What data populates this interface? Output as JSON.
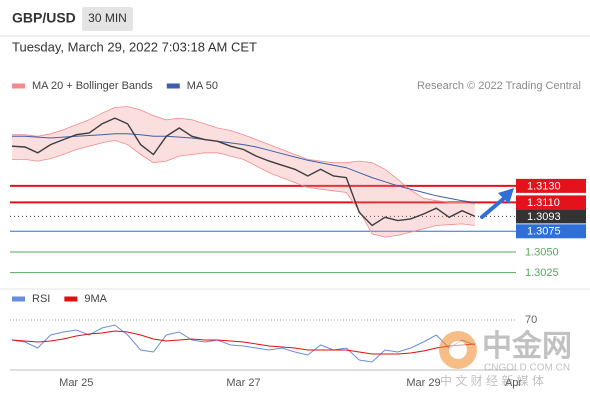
{
  "header": {
    "symbol": "GBP/USD",
    "timeframe": "30 MIN",
    "timestamp": "Tuesday, March 29, 2022 7:03:18 AM CET",
    "credit": "Research © 2022 Trading Central"
  },
  "chart_data": [
    {
      "type": "line",
      "color": "#3d3d3d",
      "values": [
        1.3178,
        1.3177,
        1.317,
        1.318,
        1.3186,
        1.3192,
        1.3194,
        1.3205,
        1.3212,
        1.3205,
        1.318,
        1.3168,
        1.319,
        1.32,
        1.319,
        1.3186,
        1.3184,
        1.3178,
        1.3174,
        1.3166,
        1.316,
        1.3155,
        1.315,
        1.3142,
        1.315,
        1.3142,
        1.314,
        1.3098,
        1.3082,
        1.3092,
        1.3088,
        1.309,
        1.3096,
        1.3103,
        1.3092,
        1.31,
        1.3093,
        null,
        null,
        null
      ],
      "series": [
        {
          "name": "MA 20 + Bollinger Bands",
          "color": "#f28b8b",
          "upper": [
            1.3192,
            1.3192,
            1.319,
            1.3193,
            1.3198,
            1.3204,
            1.321,
            1.3218,
            1.3225,
            1.3226,
            1.3222,
            1.3215,
            1.321,
            1.3212,
            1.321,
            1.3205,
            1.32,
            1.3197,
            1.3192,
            1.3186,
            1.318,
            1.3174,
            1.3168,
            1.3162,
            1.316,
            1.3158,
            1.3158,
            1.316,
            1.3158,
            1.315,
            1.3138,
            1.3125,
            1.3115,
            1.3112,
            1.311,
            1.311,
            1.3108,
            null,
            null,
            null
          ],
          "lower": [
            1.3162,
            1.3162,
            1.316,
            1.3163,
            1.3168,
            1.3174,
            1.3178,
            1.3182,
            1.3185,
            1.318,
            1.3168,
            1.3158,
            1.316,
            1.3166,
            1.3168,
            1.317,
            1.317,
            1.3166,
            1.3162,
            1.3154,
            1.3146,
            1.314,
            1.3134,
            1.3128,
            1.3126,
            1.3124,
            1.3122,
            1.31,
            1.3072,
            1.3068,
            1.307,
            1.3074,
            1.3078,
            1.3082,
            1.3083,
            1.3084,
            1.3082,
            null,
            null,
            null
          ]
        },
        {
          "name": "MA 50",
          "color": "#3f5ea8",
          "values": [
            1.319,
            1.319,
            1.3189,
            1.3188,
            1.3189,
            1.319,
            1.3191,
            1.3192,
            1.3193,
            1.3193,
            1.3192,
            1.319,
            1.319,
            1.3189,
            1.3188,
            1.3186,
            1.3184,
            1.3182,
            1.318,
            1.3177,
            1.3173,
            1.3169,
            1.3165,
            1.3161,
            1.3158,
            1.3155,
            1.3152,
            1.3146,
            1.314,
            1.3135,
            1.313,
            1.3126,
            1.3122,
            1.3118,
            1.3115,
            1.3112,
            1.311,
            null,
            null,
            null
          ]
        }
      ],
      "ylim": [
        1.301,
        1.324
      ],
      "yticks": [
        {
          "value": 1.313,
          "label": "1.3130"
        },
        {
          "value": 1.311,
          "label": "1.3110"
        },
        {
          "value": 1.3093,
          "label": "1.3093"
        },
        {
          "value": 1.3075,
          "label": "1.3075"
        },
        {
          "value": 1.305,
          "label": "1.3050"
        },
        {
          "value": 1.3025,
          "label": "1.3025"
        }
      ],
      "ytick_colors": [
        "#e3121b",
        "#e3121b",
        "#333333",
        "#2f6fd6",
        "#5aa85a",
        "#5aa85a"
      ],
      "ytick_styles": [
        "box",
        "box",
        "box-dotted",
        "box",
        "text",
        "text"
      ]
    },
    {
      "type": "line",
      "categories": [
        null,
        null,
        null,
        null,
        null,
        "Mar 25",
        null,
        null,
        null,
        null,
        null,
        null,
        null,
        null,
        null,
        null,
        null,
        null,
        "Mar 27",
        null,
        null,
        null,
        null,
        null,
        null,
        null,
        null,
        null,
        null,
        null,
        null,
        null,
        "Mar 29",
        null,
        null,
        null,
        null,
        null,
        null,
        "Apr"
      ],
      "series": [
        {
          "name": "RSI",
          "color": "#6a8de0",
          "values": [
            50,
            48,
            42,
            55,
            58,
            60,
            55,
            62,
            65,
            55,
            40,
            38,
            55,
            58,
            50,
            48,
            50,
            45,
            44,
            42,
            40,
            42,
            38,
            35,
            45,
            40,
            42,
            30,
            28,
            40,
            38,
            42,
            48,
            55,
            42,
            50,
            45,
            null,
            null,
            null
          ]
        },
        {
          "name": "9MA",
          "color": "#e01010",
          "values": [
            50,
            49,
            48,
            49,
            51,
            54,
            56,
            57,
            59,
            58,
            55,
            51,
            49,
            50,
            51,
            50,
            50,
            49,
            48,
            46,
            44,
            43,
            42,
            40,
            40,
            40,
            40,
            38,
            36,
            36,
            36,
            37,
            39,
            42,
            44,
            45,
            46,
            null,
            null,
            null
          ]
        }
      ],
      "ylim": [
        20,
        90
      ],
      "yticks": [
        70
      ],
      "grid": true
    }
  ],
  "watermark": {
    "logo": "中金网",
    "domain": "CNGOLD.COM.CN",
    "tagline": "中 文 财 经 新 媒 体"
  }
}
